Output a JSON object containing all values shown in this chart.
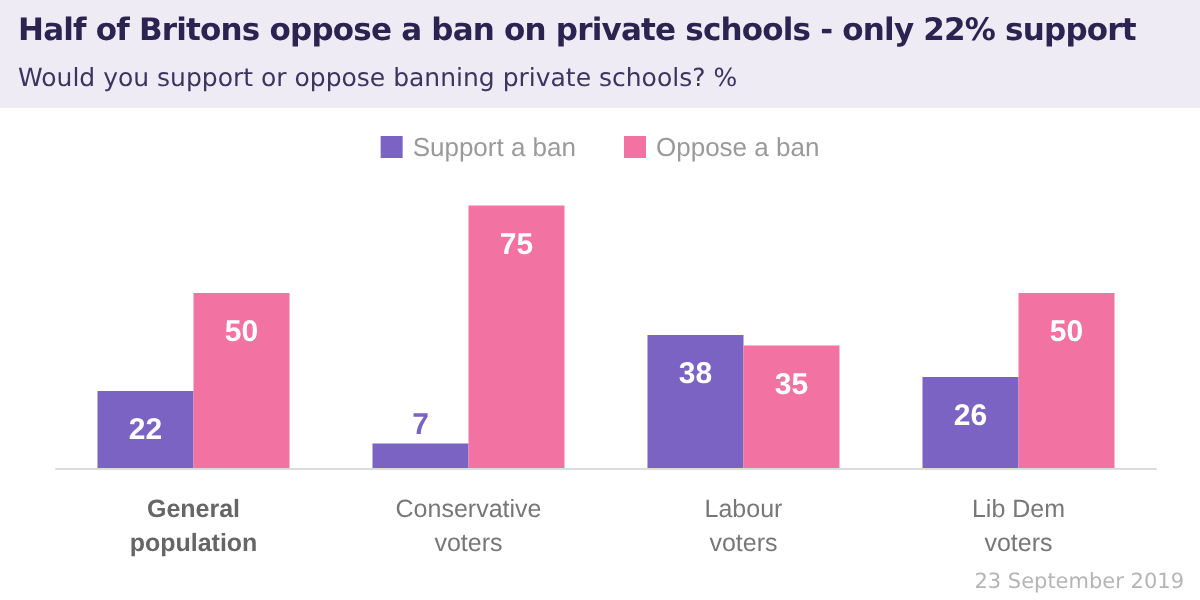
{
  "chart_data": {
    "type": "bar",
    "title": "Half of Britons oppose a ban on private schools - only 22% support",
    "subtitle": "Would you support or oppose banning private schools? %",
    "categories": [
      "General\npopulation",
      "Conservative\nvoters",
      "Labour\nvoters",
      "Lib Dem\nvoters"
    ],
    "series": [
      {
        "name": "Support a ban",
        "color": "#7b63c4",
        "values": [
          22,
          7,
          38,
          26
        ]
      },
      {
        "name": "Oppose a ban",
        "color": "#f272a1",
        "values": [
          50,
          75,
          35,
          50
        ]
      }
    ],
    "data_labels": true,
    "legend": "top",
    "annotations": [
      "23 September 2019"
    ]
  }
}
